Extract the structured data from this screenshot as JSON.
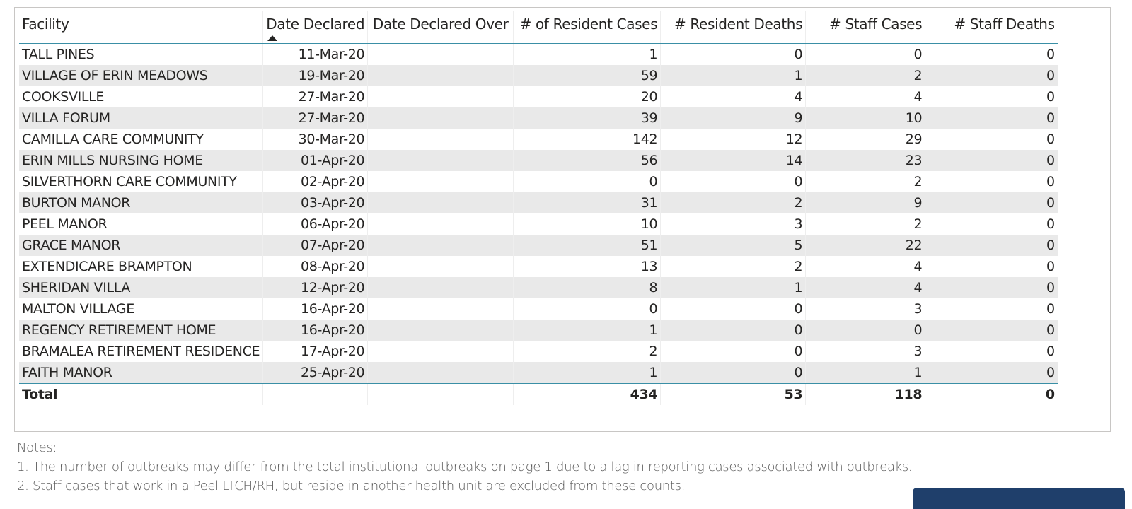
{
  "table": {
    "columns": [
      {
        "label": "Facility",
        "align": "left"
      },
      {
        "label": "Date Declared",
        "align": "right"
      },
      {
        "label": "Date Declared Over",
        "align": "center"
      },
      {
        "label": "# of Resident Cases",
        "align": "right"
      },
      {
        "label": "# Resident Deaths",
        "align": "right"
      },
      {
        "label": "# Staff Cases",
        "align": "right"
      },
      {
        "label": "# Staff Deaths",
        "align": "right"
      }
    ],
    "sort": {
      "column": "Date Declared",
      "direction": "ascending"
    },
    "rows": [
      [
        "TALL PINES",
        "11-Mar-20",
        "",
        "1",
        "0",
        "0",
        "0"
      ],
      [
        "VILLAGE OF ERIN MEADOWS",
        "19-Mar-20",
        "",
        "59",
        "1",
        "2",
        "0"
      ],
      [
        "COOKSVILLE",
        "27-Mar-20",
        "",
        "20",
        "4",
        "4",
        "0"
      ],
      [
        "VILLA FORUM",
        "27-Mar-20",
        "",
        "39",
        "9",
        "10",
        "0"
      ],
      [
        "CAMILLA CARE COMMUNITY",
        "30-Mar-20",
        "",
        "142",
        "12",
        "29",
        "0"
      ],
      [
        "ERIN MILLS NURSING HOME",
        "01-Apr-20",
        "",
        "56",
        "14",
        "23",
        "0"
      ],
      [
        "SILVERTHORN CARE COMMUNITY",
        "02-Apr-20",
        "",
        "0",
        "0",
        "2",
        "0"
      ],
      [
        "BURTON MANOR",
        "03-Apr-20",
        "",
        "31",
        "2",
        "9",
        "0"
      ],
      [
        "PEEL MANOR",
        "06-Apr-20",
        "",
        "10",
        "3",
        "2",
        "0"
      ],
      [
        "GRACE MANOR",
        "07-Apr-20",
        "",
        "51",
        "5",
        "22",
        "0"
      ],
      [
        "EXTENDICARE BRAMPTON",
        "08-Apr-20",
        "",
        "13",
        "2",
        "4",
        "0"
      ],
      [
        "SHERIDAN VILLA",
        "12-Apr-20",
        "",
        "8",
        "1",
        "4",
        "0"
      ],
      [
        "MALTON VILLAGE",
        "16-Apr-20",
        "",
        "0",
        "0",
        "3",
        "0"
      ],
      [
        "REGENCY RETIREMENT HOME",
        "16-Apr-20",
        "",
        "1",
        "0",
        "0",
        "0"
      ],
      [
        "BRAMALEA RETIREMENT RESIDENCE",
        "17-Apr-20",
        "",
        "2",
        "0",
        "3",
        "0"
      ],
      [
        "FAITH MANOR",
        "25-Apr-20",
        "",
        "1",
        "0",
        "1",
        "0"
      ]
    ],
    "totals": [
      "Total",
      "",
      "",
      "434",
      "53",
      "118",
      "0"
    ]
  },
  "notes": {
    "heading": "Notes:",
    "items": [
      "1. The number of outbreaks may differ from the total institutional outbreaks on page 1 due to a lag in reporting cases associated with outbreaks.",
      "2. Staff cases that work in a Peel LTCH/RH, but reside in another health unit are excluded from these counts."
    ]
  },
  "colors": {
    "header_rule": "#3a8fa6",
    "band": "#e9e9e9",
    "text": "#252423",
    "notes_text": "#5a5a5a",
    "corner_button": "#1f3f6b"
  }
}
